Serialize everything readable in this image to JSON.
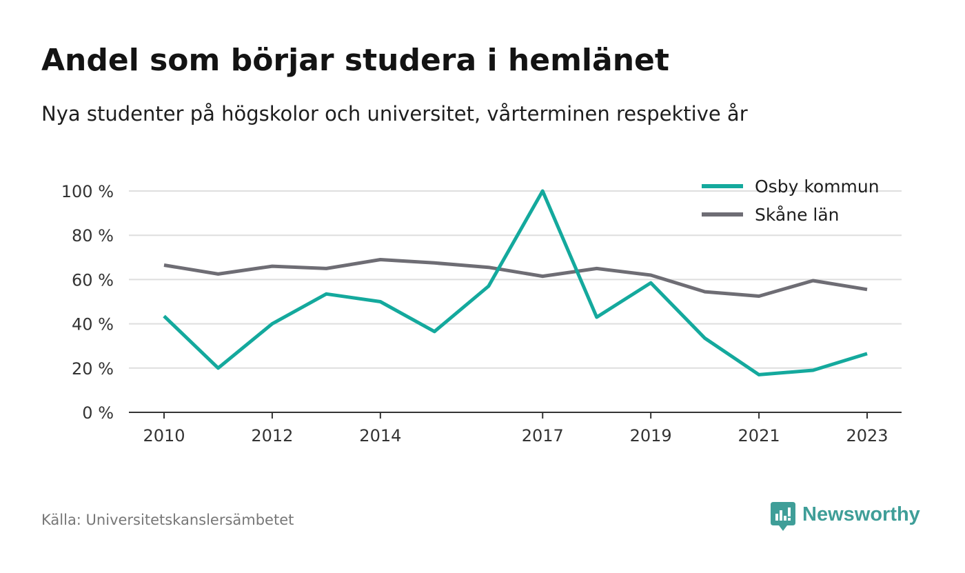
{
  "chart_data": {
    "type": "line",
    "title": "Andel som börjar studera i hemlänet",
    "subtitle": "Nya studenter på högskolor och universitet, vårterminen respektive år",
    "x": [
      2010,
      2011,
      2012,
      2013,
      2014,
      2015,
      2016,
      2017,
      2018,
      2019,
      2020,
      2021,
      2022,
      2023
    ],
    "x_tick_values": [
      2010,
      2012,
      2014,
      2017,
      2019,
      2021,
      2023
    ],
    "x_tick_labels": [
      "2010",
      "2012",
      "2014",
      "2017",
      "2019",
      "2021",
      "2023"
    ],
    "y_tick_values": [
      0,
      20,
      40,
      60,
      80,
      100
    ],
    "y_tick_labels": [
      "0 %",
      "20 %",
      "40 %",
      "60 %",
      "80 %",
      "100 %"
    ],
    "ylim": [
      0,
      100
    ],
    "grid": true,
    "legend_position": "top-right",
    "series": [
      {
        "name": "Osby kommun",
        "color": "#14a99d",
        "values": [
          43.5,
          20,
          40,
          53.5,
          50,
          36.5,
          57,
          100,
          43,
          58.5,
          33.5,
          17,
          19,
          26.5
        ]
      },
      {
        "name": "Skåne län",
        "color": "#6e6d74",
        "values": [
          66.5,
          62.5,
          66,
          65,
          69,
          67.5,
          65.5,
          61.5,
          65,
          62,
          54.5,
          52.5,
          59.5,
          55.5
        ]
      }
    ]
  },
  "source": "Källa: Universitetskanslersämbetet",
  "brand": {
    "name": "Newsworthy",
    "color": "#3f9e98",
    "icon": "newsworthy-logo-icon"
  }
}
